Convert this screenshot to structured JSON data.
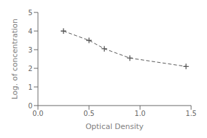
{
  "chart_data": {
    "type": "line",
    "x": [
      0.25,
      0.5,
      0.65,
      0.9,
      1.45
    ],
    "values": [
      4.0,
      3.5,
      3.05,
      2.55,
      2.1
    ],
    "xlabel": "Optical Density",
    "ylabel": "Log. of concentration",
    "xlim": [
      0,
      1.5
    ],
    "ylim": [
      0,
      5
    ],
    "xticks": [
      {
        "value": 0,
        "label": "0.0"
      },
      0.5,
      {
        "value": 1.0,
        "label": "1.0"
      },
      1.5
    ],
    "yticks": [
      0,
      1,
      2,
      3,
      4,
      5
    ],
    "color": "#555555",
    "marker": "plus",
    "line_style": "dashed",
    "grid": false
  }
}
